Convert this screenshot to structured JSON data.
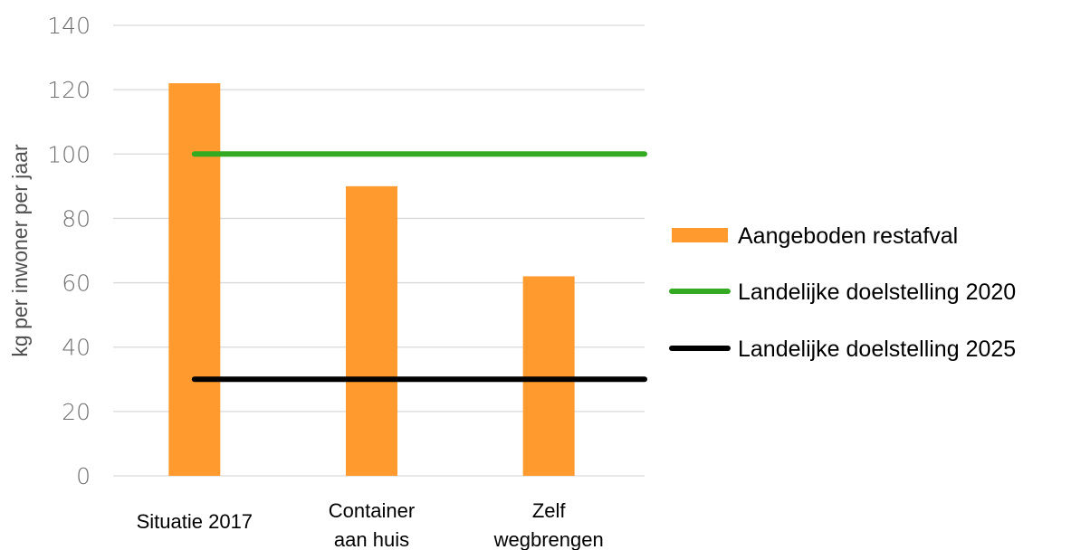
{
  "chart_data": {
    "type": "bar",
    "title": "",
    "xlabel": "",
    "ylabel": "kg per inwoner per jaar",
    "ylim": [
      0,
      140
    ],
    "y_ticks": [
      0,
      20,
      40,
      60,
      80,
      100,
      120,
      140
    ],
    "grid": true,
    "categories": [
      [
        "Situatie 2017"
      ],
      [
        "Container",
        "aan huis"
      ],
      [
        "Zelf",
        "wegbrengen"
      ]
    ],
    "series": [
      {
        "name": "Aangeboden restafval",
        "type": "bar",
        "values": [
          122,
          90,
          62
        ],
        "color": "#ff9a2e"
      },
      {
        "name": "Landelijke doelstelling 2020",
        "type": "line",
        "values": [
          100,
          100,
          100
        ],
        "color": "#33aa22"
      },
      {
        "name": "Landelijke doelstelling 2025",
        "type": "line",
        "values": [
          30,
          30,
          30
        ],
        "color": "#000000"
      }
    ],
    "legend_position": "right"
  }
}
